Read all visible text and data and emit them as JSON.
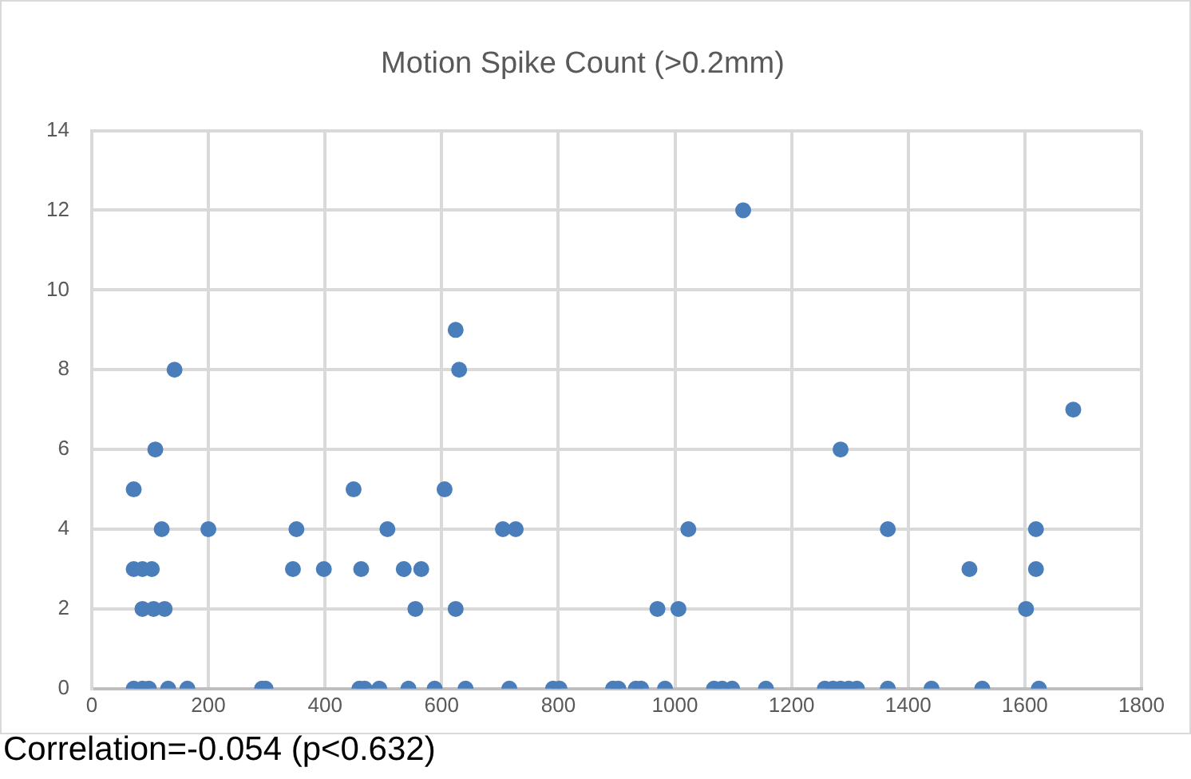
{
  "chart_data": {
    "type": "scatter",
    "title": "Motion Spike Count (>0.2mm)",
    "x": [
      72,
      72,
      72,
      87,
      98,
      131,
      164,
      142,
      109,
      120,
      200,
      351,
      449,
      507,
      605,
      624,
      630,
      87,
      103,
      345,
      398,
      462,
      535,
      565,
      87,
      106,
      125,
      555,
      624,
      292,
      298,
      459,
      468,
      493,
      543,
      588,
      641,
      705,
      727,
      1023,
      1284,
      1365,
      970,
      1006,
      716,
      791,
      802,
      894,
      903,
      933,
      942,
      983,
      1067,
      1081,
      1098,
      1156,
      1257,
      1271,
      1284,
      1298,
      1312,
      1365,
      1117,
      1683,
      1619,
      1505,
      1619,
      1602,
      1440,
      1527,
      1624
    ],
    "values": [
      5,
      3,
      0,
      0,
      0,
      0,
      0,
      8,
      6,
      4,
      4,
      4,
      5,
      4,
      5,
      9,
      8,
      3,
      3,
      3,
      3,
      3,
      3,
      3,
      2,
      2,
      2,
      2,
      2,
      0,
      0,
      0,
      0,
      0,
      0,
      0,
      0,
      4,
      4,
      4,
      6,
      4,
      2,
      2,
      0,
      0,
      0,
      0,
      0,
      0,
      0,
      0,
      0,
      0,
      0,
      0,
      0,
      0,
      0,
      0,
      0,
      0,
      12,
      7,
      4,
      3,
      3,
      2,
      0,
      0,
      0
    ],
    "color": "#4a7ebb",
    "marker": "circle",
    "grid": true,
    "legend": false,
    "xlim": [
      0,
      1800
    ],
    "xticks": [
      0,
      200,
      400,
      600,
      800,
      1000,
      1200,
      1400,
      1600,
      1800
    ],
    "ylim": [
      0,
      14
    ],
    "yticks": [
      0,
      2,
      4,
      6,
      8,
      10,
      12,
      14
    ],
    "annotations": [
      "Correlation=-0.054 (p<0.632)"
    ]
  }
}
